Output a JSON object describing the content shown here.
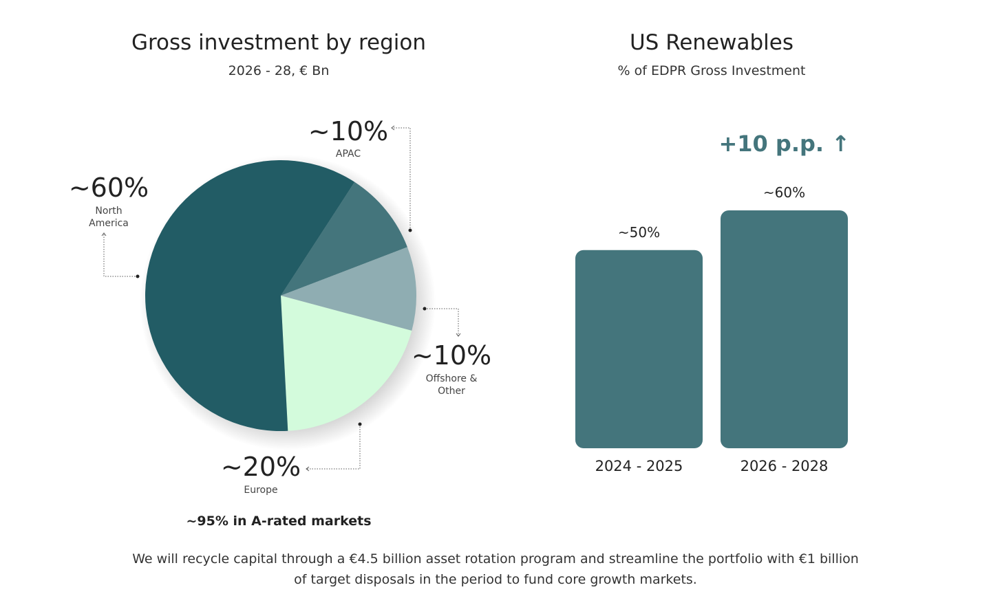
{
  "left_panel": {
    "title": "Gross investment by region",
    "subtitle": "2026 - 28, € Bn",
    "highlight": "~95% in A-rated markets"
  },
  "right_panel": {
    "title": "US Renewables",
    "subtitle": "% of EDPR Gross Investment",
    "delta": "+10 p.p. ↑"
  },
  "footer": {
    "line1": "We will recycle capital through a €4.5 billion asset rotation program and streamline the portfolio with €1 billion",
    "line2": "of target disposals in the period to fund core growth markets."
  },
  "colors": {
    "north_america": "#225c65",
    "apac": "#44757c",
    "offshore_other": "#8fadb2",
    "europe": "#d3fbdc",
    "bar": "#44757c",
    "delta": "#44757c"
  },
  "chart_data": [
    {
      "type": "pie",
      "title": "Gross investment by region",
      "subtitle": "2026 - 28, € Bn",
      "slices": [
        {
          "label_pct": "~60%",
          "name_lines": [
            "North",
            "America"
          ],
          "value": 60,
          "color_key": "north_america"
        },
        {
          "label_pct": "~10%",
          "name_lines": [
            "APAC"
          ],
          "value": 10,
          "color_key": "apac"
        },
        {
          "label_pct": "~10%",
          "name_lines": [
            "Offshore &",
            "Other"
          ],
          "value": 10,
          "color_key": "offshore_other"
        },
        {
          "label_pct": "~20%",
          "name_lines": [
            "Europe"
          ],
          "value": 20,
          "color_key": "europe"
        }
      ]
    },
    {
      "type": "bar",
      "title": "US Renewables",
      "subtitle": "% of EDPR Gross Investment",
      "categories": [
        "2024 - 2025",
        "2026 - 2028"
      ],
      "values": [
        50,
        60
      ],
      "value_labels": [
        "~50%",
        "~60%"
      ],
      "ylim": [
        0,
        60
      ]
    }
  ]
}
